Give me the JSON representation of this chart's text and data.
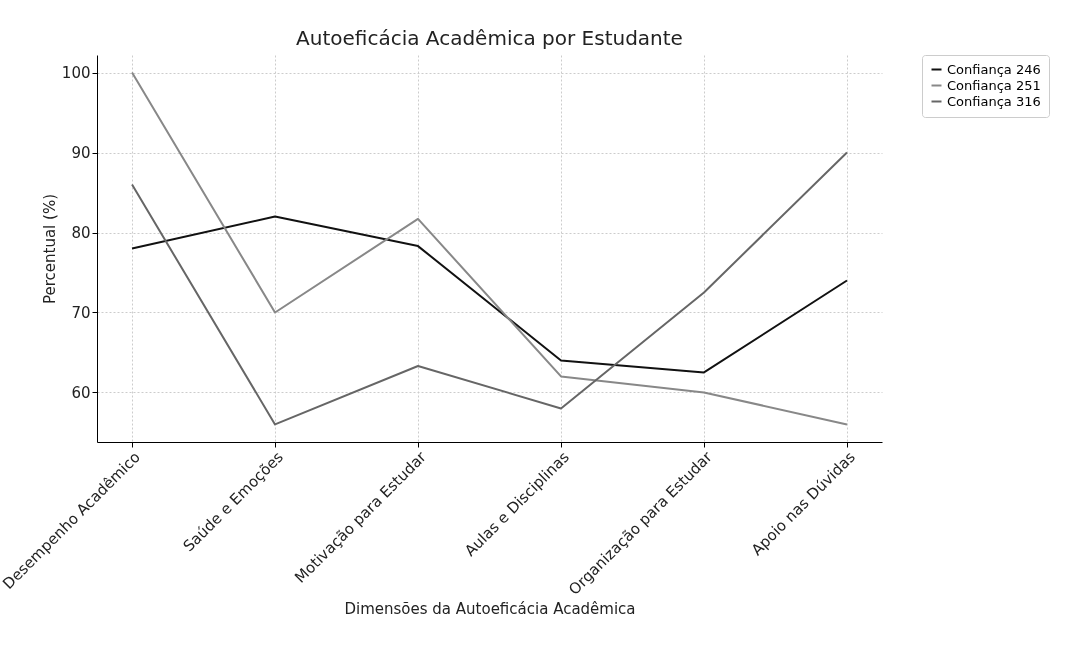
{
  "chart_data": {
    "type": "line",
    "title": "Autoeficácia Acadêmica por Estudante",
    "xlabel": "Dimensões da Autoeficácia Acadêmica",
    "ylabel": "Percentual (%)",
    "categories": [
      "Desempenho Acadêmico",
      "Saúde e Emoções",
      "Motivação para Estudar",
      "Aulas e Disciplinas",
      "Organização para Estudar",
      "Apoio nas Dúvidas"
    ],
    "series": [
      {
        "name": "Confiança 246",
        "color": "#111111",
        "values": [
          78,
          82,
          78.3,
          64,
          62.5,
          74
        ]
      },
      {
        "name": "Confiança 251",
        "color": "#888888",
        "values": [
          100,
          70,
          81.7,
          62,
          60,
          56
        ]
      },
      {
        "name": "Confiança 316",
        "color": "#666666",
        "values": [
          86,
          56,
          63.3,
          58,
          72.5,
          90
        ]
      }
    ],
    "ylim": [
      53.8,
      102.2
    ],
    "yticks": [
      60,
      70,
      80,
      90,
      100
    ],
    "grid": true,
    "legend": "top right",
    "marker": "none",
    "line_style": "solid"
  }
}
